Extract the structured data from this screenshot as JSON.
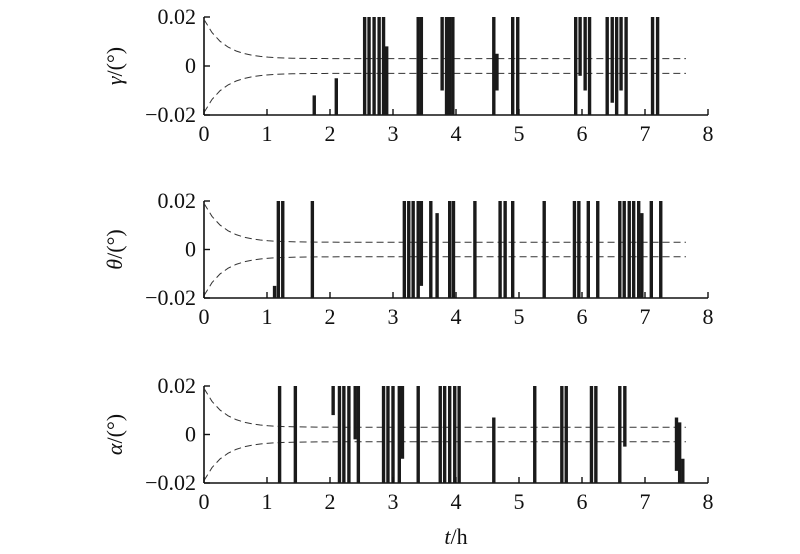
{
  "chart_data": [
    {
      "type": "line",
      "ylabel_symbol": "γ",
      "ylabel_unit": "/(°)",
      "xlim": [
        0,
        8
      ],
      "ylim": [
        -0.02,
        0.02
      ],
      "x_ticks": [
        "0",
        "1",
        "2",
        "3",
        "4",
        "5",
        "6",
        "7",
        "8"
      ],
      "y_ticks": [
        "0.02",
        "0",
        "−0.02"
      ],
      "grid": false,
      "envelope": {
        "style": "dashed",
        "start_abs": 0.019,
        "end_abs": 0.003,
        "decay_end_h": 1.3
      },
      "spikes": [
        {
          "t": 1.75,
          "lo": -0.02,
          "hi": -0.012
        },
        {
          "t": 2.1,
          "lo": -0.02,
          "hi": -0.005
        },
        {
          "t": 2.55,
          "lo": -0.02,
          "hi": 0.02
        },
        {
          "t": 2.62,
          "lo": -0.02,
          "hi": 0.02
        },
        {
          "t": 2.7,
          "lo": -0.02,
          "hi": 0.02
        },
        {
          "t": 2.78,
          "lo": -0.02,
          "hi": 0.02
        },
        {
          "t": 2.85,
          "lo": -0.02,
          "hi": 0.02
        },
        {
          "t": 2.9,
          "lo": -0.02,
          "hi": 0.008
        },
        {
          "t": 3.4,
          "lo": -0.02,
          "hi": 0.02
        },
        {
          "t": 3.45,
          "lo": -0.02,
          "hi": 0.02
        },
        {
          "t": 3.78,
          "lo": -0.01,
          "hi": 0.02
        },
        {
          "t": 3.85,
          "lo": -0.02,
          "hi": 0.02
        },
        {
          "t": 3.9,
          "lo": -0.02,
          "hi": 0.02
        },
        {
          "t": 3.95,
          "lo": -0.02,
          "hi": 0.02
        },
        {
          "t": 4.6,
          "lo": -0.02,
          "hi": 0.02
        },
        {
          "t": 4.65,
          "lo": -0.01,
          "hi": 0.005
        },
        {
          "t": 4.9,
          "lo": -0.02,
          "hi": 0.02
        },
        {
          "t": 4.98,
          "lo": -0.02,
          "hi": 0.02
        },
        {
          "t": 5.9,
          "lo": -0.02,
          "hi": 0.02
        },
        {
          "t": 5.97,
          "lo": -0.004,
          "hi": 0.02
        },
        {
          "t": 6.05,
          "lo": -0.01,
          "hi": 0.02
        },
        {
          "t": 6.12,
          "lo": -0.02,
          "hi": 0.02
        },
        {
          "t": 6.4,
          "lo": -0.02,
          "hi": 0.02
        },
        {
          "t": 6.48,
          "lo": -0.015,
          "hi": 0.02
        },
        {
          "t": 6.55,
          "lo": -0.02,
          "hi": 0.02
        },
        {
          "t": 6.62,
          "lo": -0.01,
          "hi": 0.02
        },
        {
          "t": 6.7,
          "lo": -0.02,
          "hi": 0.02
        },
        {
          "t": 7.12,
          "lo": -0.02,
          "hi": 0.02
        },
        {
          "t": 7.2,
          "lo": -0.02,
          "hi": 0.02
        }
      ]
    },
    {
      "type": "line",
      "ylabel_symbol": "θ",
      "ylabel_unit": "/(°)",
      "xlim": [
        0,
        8
      ],
      "ylim": [
        -0.02,
        0.02
      ],
      "x_ticks": [
        "0",
        "1",
        "2",
        "3",
        "4",
        "5",
        "6",
        "7",
        "8"
      ],
      "y_ticks": [
        "0.02",
        "0",
        "−0.02"
      ],
      "grid": false,
      "envelope": {
        "style": "dashed",
        "start_abs": 0.019,
        "end_abs": 0.003,
        "decay_end_h": 1.3
      },
      "spikes": [
        {
          "t": 1.12,
          "lo": -0.02,
          "hi": -0.015
        },
        {
          "t": 1.18,
          "lo": -0.02,
          "hi": 0.02
        },
        {
          "t": 1.25,
          "lo": -0.02,
          "hi": 0.02
        },
        {
          "t": 1.72,
          "lo": -0.02,
          "hi": 0.02
        },
        {
          "t": 3.18,
          "lo": -0.02,
          "hi": 0.02
        },
        {
          "t": 3.25,
          "lo": -0.02,
          "hi": 0.02
        },
        {
          "t": 3.32,
          "lo": -0.02,
          "hi": 0.02
        },
        {
          "t": 3.4,
          "lo": -0.02,
          "hi": 0.02
        },
        {
          "t": 3.45,
          "lo": -0.015,
          "hi": 0.02
        },
        {
          "t": 3.6,
          "lo": -0.02,
          "hi": 0.02
        },
        {
          "t": 3.7,
          "lo": -0.02,
          "hi": 0.015
        },
        {
          "t": 3.9,
          "lo": -0.02,
          "hi": 0.02
        },
        {
          "t": 3.96,
          "lo": -0.02,
          "hi": 0.02
        },
        {
          "t": 4.3,
          "lo": -0.02,
          "hi": 0.02
        },
        {
          "t": 4.7,
          "lo": -0.02,
          "hi": 0.02
        },
        {
          "t": 4.78,
          "lo": -0.02,
          "hi": 0.02
        },
        {
          "t": 4.9,
          "lo": -0.02,
          "hi": 0.02
        },
        {
          "t": 5.4,
          "lo": -0.02,
          "hi": 0.02
        },
        {
          "t": 5.88,
          "lo": -0.02,
          "hi": 0.02
        },
        {
          "t": 5.95,
          "lo": -0.02,
          "hi": 0.02
        },
        {
          "t": 6.1,
          "lo": -0.02,
          "hi": 0.02
        },
        {
          "t": 6.25,
          "lo": -0.02,
          "hi": 0.02
        },
        {
          "t": 6.6,
          "lo": -0.02,
          "hi": 0.02
        },
        {
          "t": 6.67,
          "lo": -0.02,
          "hi": 0.02
        },
        {
          "t": 6.75,
          "lo": -0.02,
          "hi": 0.02
        },
        {
          "t": 6.82,
          "lo": -0.02,
          "hi": 0.02
        },
        {
          "t": 6.9,
          "lo": -0.02,
          "hi": 0.02
        },
        {
          "t": 6.95,
          "lo": -0.02,
          "hi": 0.015
        },
        {
          "t": 7.1,
          "lo": -0.02,
          "hi": 0.02
        },
        {
          "t": 7.25,
          "lo": -0.02,
          "hi": 0.02
        }
      ]
    },
    {
      "type": "line",
      "ylabel_symbol": "α",
      "ylabel_unit": "/(°)",
      "xlabel_symbol": "t",
      "xlabel_unit": "/h",
      "xlim": [
        0,
        8
      ],
      "ylim": [
        -0.02,
        0.02
      ],
      "x_ticks": [
        "0",
        "1",
        "2",
        "3",
        "4",
        "5",
        "6",
        "7",
        "8"
      ],
      "y_ticks": [
        "0.02",
        "0",
        "−0.02"
      ],
      "grid": false,
      "envelope": {
        "style": "dashed",
        "start_abs": 0.019,
        "end_abs": 0.003,
        "decay_end_h": 1.3
      },
      "spikes": [
        {
          "t": 1.2,
          "lo": -0.02,
          "hi": 0.02
        },
        {
          "t": 1.45,
          "lo": -0.02,
          "hi": 0.02
        },
        {
          "t": 2.05,
          "lo": 0.008,
          "hi": 0.02
        },
        {
          "t": 2.15,
          "lo": -0.02,
          "hi": 0.02
        },
        {
          "t": 2.22,
          "lo": -0.02,
          "hi": 0.02
        },
        {
          "t": 2.3,
          "lo": -0.02,
          "hi": 0.02
        },
        {
          "t": 2.4,
          "lo": -0.002,
          "hi": 0.02
        },
        {
          "t": 2.45,
          "lo": -0.02,
          "hi": 0.02
        },
        {
          "t": 2.85,
          "lo": -0.02,
          "hi": 0.02
        },
        {
          "t": 2.92,
          "lo": -0.02,
          "hi": 0.02
        },
        {
          "t": 3.0,
          "lo": -0.02,
          "hi": 0.02
        },
        {
          "t": 3.1,
          "lo": -0.02,
          "hi": 0.02
        },
        {
          "t": 3.15,
          "lo": -0.01,
          "hi": 0.02
        },
        {
          "t": 3.4,
          "lo": -0.02,
          "hi": 0.02
        },
        {
          "t": 3.75,
          "lo": -0.02,
          "hi": 0.02
        },
        {
          "t": 3.82,
          "lo": -0.02,
          "hi": 0.02
        },
        {
          "t": 3.9,
          "lo": -0.02,
          "hi": 0.02
        },
        {
          "t": 3.98,
          "lo": -0.02,
          "hi": 0.02
        },
        {
          "t": 4.05,
          "lo": -0.02,
          "hi": 0.02
        },
        {
          "t": 4.6,
          "lo": -0.02,
          "hi": 0.007
        },
        {
          "t": 5.25,
          "lo": -0.02,
          "hi": 0.02
        },
        {
          "t": 5.68,
          "lo": -0.02,
          "hi": 0.02
        },
        {
          "t": 5.75,
          "lo": -0.02,
          "hi": 0.02
        },
        {
          "t": 6.15,
          "lo": -0.02,
          "hi": 0.02
        },
        {
          "t": 6.22,
          "lo": -0.02,
          "hi": 0.02
        },
        {
          "t": 6.6,
          "lo": -0.02,
          "hi": 0.02
        },
        {
          "t": 6.68,
          "lo": -0.005,
          "hi": 0.02
        },
        {
          "t": 7.5,
          "lo": -0.015,
          "hi": 0.007
        },
        {
          "t": 7.55,
          "lo": -0.02,
          "hi": 0.005
        },
        {
          "t": 7.6,
          "lo": -0.02,
          "hi": -0.01
        }
      ]
    }
  ]
}
